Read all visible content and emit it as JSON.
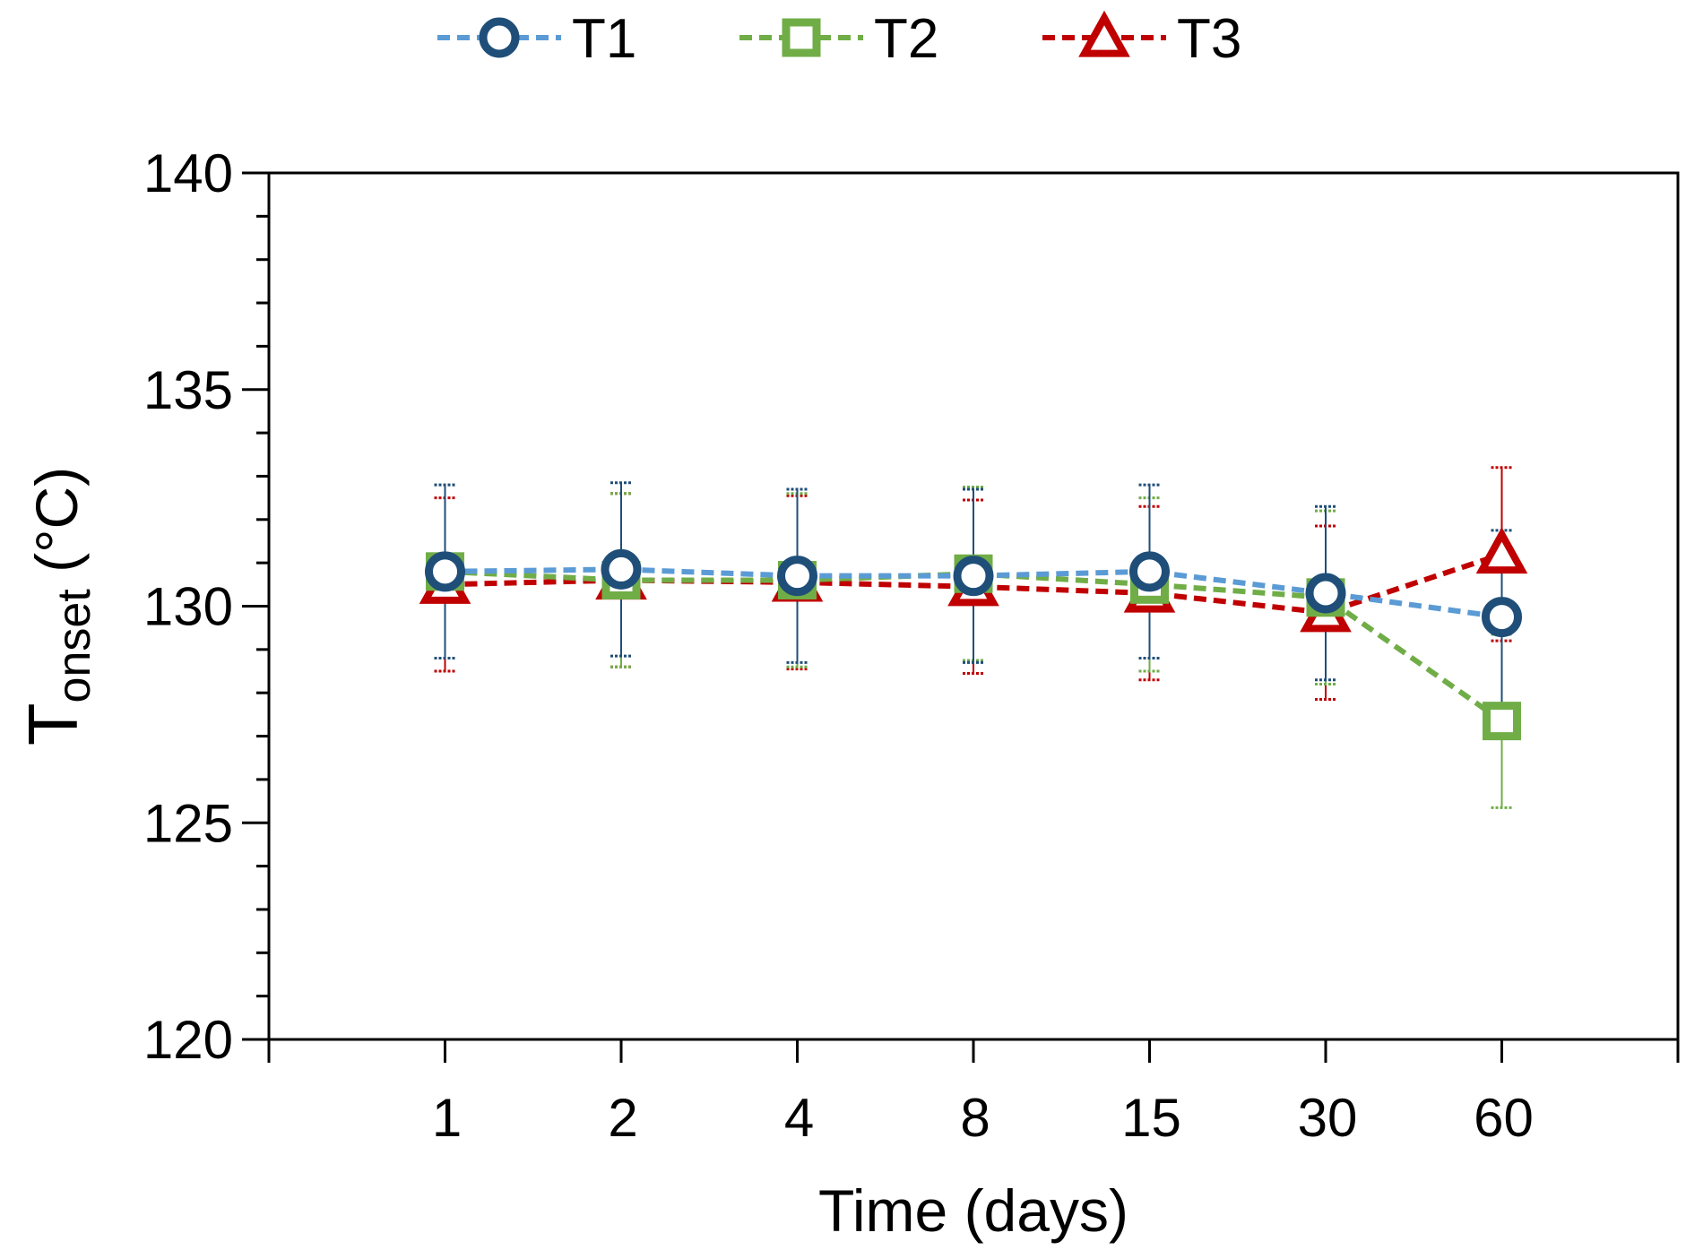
{
  "chart_data": {
    "type": "line",
    "title": "",
    "xlabel": "Time (days)",
    "ylabel": {
      "main": "T",
      "subscript": "onset",
      "unit": " (°C)"
    },
    "categories": [
      "1",
      "2",
      "4",
      "8",
      "15",
      "30",
      "60"
    ],
    "ylim": [
      120,
      140
    ],
    "yticks": [
      120,
      125,
      130,
      135,
      140
    ],
    "y_minor_step": 1,
    "grid": false,
    "legend_position": "top",
    "series": [
      {
        "name": "T1",
        "marker": "circle",
        "line_color": "#5b9bd5",
        "marker_color": "#1f4e79",
        "values": [
          130.8,
          130.85,
          130.7,
          130.7,
          130.8,
          130.3,
          129.75
        ],
        "errors": [
          2.0,
          2.0,
          2.0,
          2.0,
          2.0,
          2.0,
          2.0
        ]
      },
      {
        "name": "T2",
        "marker": "square",
        "line_color": "#70ad47",
        "marker_color": "#70ad47",
        "values": [
          130.8,
          130.6,
          130.6,
          130.75,
          130.5,
          130.2,
          127.35
        ],
        "errors": [
          2.0,
          2.0,
          2.0,
          2.0,
          2.0,
          2.0,
          2.0
        ]
      },
      {
        "name": "T3",
        "marker": "triangle",
        "line_color": "#c00000",
        "marker_color": "#c00000",
        "values": [
          130.5,
          130.6,
          130.55,
          130.45,
          130.3,
          129.85,
          131.2
        ],
        "errors": [
          2.0,
          2.0,
          2.0,
          2.0,
          2.0,
          2.0,
          2.0
        ]
      }
    ]
  }
}
